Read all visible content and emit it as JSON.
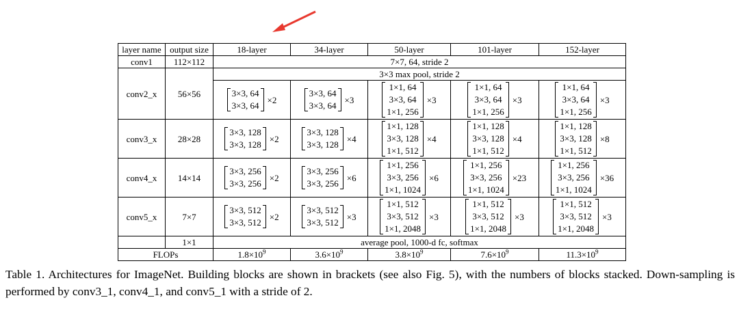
{
  "table": {
    "header": [
      "layer name",
      "output size",
      "18-layer",
      "34-layer",
      "50-layer",
      "101-layer",
      "152-layer"
    ],
    "conv1": {
      "name": "conv1",
      "output": "112×112",
      "spec": "7×7, 64, stride 2"
    },
    "pool": "3×3 max pool, stride 2",
    "stages": [
      {
        "name": "conv2_x",
        "output": "56×56",
        "blocks": [
          {
            "lines": [
              "3×3, 64",
              "3×3, 64"
            ],
            "repeat": "×2"
          },
          {
            "lines": [
              "3×3, 64",
              "3×3, 64"
            ],
            "repeat": "×3"
          },
          {
            "lines": [
              "1×1, 64",
              "3×3, 64",
              "1×1, 256"
            ],
            "repeat": "×3"
          },
          {
            "lines": [
              "1×1, 64",
              "3×3, 64",
              "1×1, 256"
            ],
            "repeat": "×3"
          },
          {
            "lines": [
              "1×1, 64",
              "3×3, 64",
              "1×1, 256"
            ],
            "repeat": "×3"
          }
        ]
      },
      {
        "name": "conv3_x",
        "output": "28×28",
        "blocks": [
          {
            "lines": [
              "3×3, 128",
              "3×3, 128"
            ],
            "repeat": "×2"
          },
          {
            "lines": [
              "3×3, 128",
              "3×3, 128"
            ],
            "repeat": "×4"
          },
          {
            "lines": [
              "1×1, 128",
              "3×3, 128",
              "1×1, 512"
            ],
            "repeat": "×4"
          },
          {
            "lines": [
              "1×1, 128",
              "3×3, 128",
              "1×1, 512"
            ],
            "repeat": "×4"
          },
          {
            "lines": [
              "1×1, 128",
              "3×3, 128",
              "1×1, 512"
            ],
            "repeat": "×8"
          }
        ]
      },
      {
        "name": "conv4_x",
        "output": "14×14",
        "blocks": [
          {
            "lines": [
              "3×3, 256",
              "3×3, 256"
            ],
            "repeat": "×2"
          },
          {
            "lines": [
              "3×3, 256",
              "3×3, 256"
            ],
            "repeat": "×6"
          },
          {
            "lines": [
              "1×1, 256",
              "3×3, 256",
              "1×1, 1024"
            ],
            "repeat": "×6"
          },
          {
            "lines": [
              "1×1, 256",
              "3×3, 256",
              "1×1, 1024"
            ],
            "repeat": "×23"
          },
          {
            "lines": [
              "1×1, 256",
              "3×3, 256",
              "1×1, 1024"
            ],
            "repeat": "×36"
          }
        ]
      },
      {
        "name": "conv5_x",
        "output": "7×7",
        "blocks": [
          {
            "lines": [
              "3×3, 512",
              "3×3, 512"
            ],
            "repeat": "×2"
          },
          {
            "lines": [
              "3×3, 512",
              "3×3, 512"
            ],
            "repeat": "×3"
          },
          {
            "lines": [
              "1×1, 512",
              "3×3, 512",
              "1×1, 2048"
            ],
            "repeat": "×3"
          },
          {
            "lines": [
              "1×1, 512",
              "3×3, 512",
              "1×1, 2048"
            ],
            "repeat": "×3"
          },
          {
            "lines": [
              "1×1, 512",
              "3×3, 512",
              "1×1, 2048"
            ],
            "repeat": "×3"
          }
        ]
      }
    ],
    "final": {
      "output": "1×1",
      "spec": "average pool, 1000-d fc, softmax"
    },
    "flops": {
      "label": "FLOPs",
      "values": [
        {
          "base": "1.8×10",
          "exp": "9"
        },
        {
          "base": "3.6×10",
          "exp": "9"
        },
        {
          "base": "3.8×10",
          "exp": "9"
        },
        {
          "base": "7.6×10",
          "exp": "9"
        },
        {
          "base": "11.3×10",
          "exp": "9"
        }
      ]
    }
  },
  "caption": "Table 1. Architectures for ImageNet. Building blocks are shown in brackets (see also Fig. 5), with the numbers of blocks stacked. Down-sampling is performed by conv3_1, conv4_1, and conv5_1 with a stride of 2."
}
